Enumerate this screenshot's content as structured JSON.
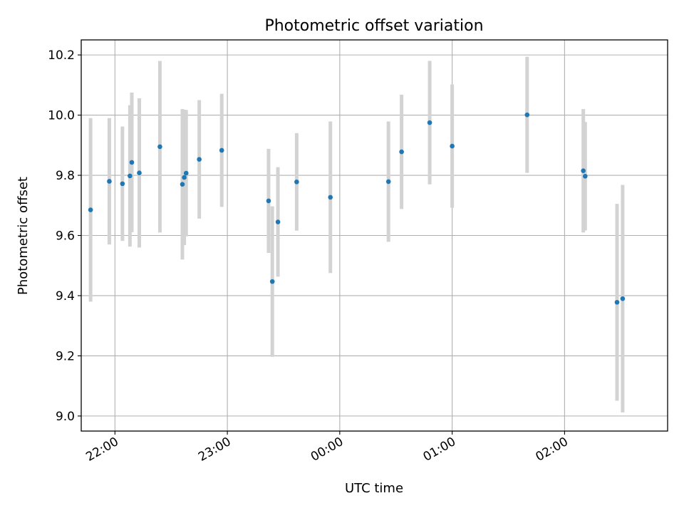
{
  "chart_data": {
    "type": "scatter",
    "title": "Photometric offset variation",
    "xlabel": "UTC time",
    "ylabel": "Photometric offset",
    "x_tick_labels": [
      "22:00",
      "23:00",
      "00:00",
      "01:00",
      "02:00"
    ],
    "x_tick_times": [
      "22:00",
      "23:00",
      "00:00",
      "01:00",
      "02:00"
    ],
    "y_ticks": [
      9.0,
      9.2,
      9.4,
      9.6,
      9.8,
      10.0,
      10.2
    ],
    "y_tick_labels": [
      "9.0",
      "9.2",
      "9.4",
      "9.6",
      "9.8",
      "10.0",
      "10.2"
    ],
    "xlim": [
      "21:42",
      "02:55"
    ],
    "ylim": [
      8.95,
      10.25
    ],
    "grid": true,
    "point_color": "#1f77b4",
    "errorbar_color": "#d3d3d3",
    "series": [
      {
        "points": [
          {
            "t": "21:47",
            "y": 9.685,
            "err": 0.305
          },
          {
            "t": "21:57",
            "y": 9.78,
            "err": 0.21
          },
          {
            "t": "22:04",
            "y": 9.772,
            "err": 0.19
          },
          {
            "t": "22:08",
            "y": 9.798,
            "err": 0.235
          },
          {
            "t": "22:09",
            "y": 9.843,
            "err": 0.232
          },
          {
            "t": "22:13",
            "y": 9.808,
            "err": 0.248
          },
          {
            "t": "22:24",
            "y": 9.895,
            "err": 0.285
          },
          {
            "t": "22:36",
            "y": 9.77,
            "err": 0.25
          },
          {
            "t": "22:37",
            "y": 9.793,
            "err": 0.225
          },
          {
            "t": "22:38",
            "y": 9.807,
            "err": 0.21
          },
          {
            "t": "22:45",
            "y": 9.853,
            "err": 0.197
          },
          {
            "t": "22:57",
            "y": 9.883,
            "err": 0.188
          },
          {
            "t": "23:22",
            "y": 9.715,
            "err": 0.173
          },
          {
            "t": "23:24",
            "y": 9.447,
            "err": 0.25
          },
          {
            "t": "23:27",
            "y": 9.645,
            "err": 0.182
          },
          {
            "t": "23:37",
            "y": 9.778,
            "err": 0.162
          },
          {
            "t": "23:55",
            "y": 9.727,
            "err": 0.252
          },
          {
            "t": "00:26",
            "y": 9.779,
            "err": 0.2
          },
          {
            "t": "00:33",
            "y": 9.878,
            "err": 0.19
          },
          {
            "t": "00:48",
            "y": 9.975,
            "err": 0.205
          },
          {
            "t": "01:00",
            "y": 9.897,
            "err": 0.205
          },
          {
            "t": "01:40",
            "y": 10.001,
            "err": 0.193
          },
          {
            "t": "02:10",
            "y": 9.815,
            "err": 0.205
          },
          {
            "t": "02:11",
            "y": 9.797,
            "err": 0.18
          },
          {
            "t": "02:28",
            "y": 9.378,
            "err": 0.327
          },
          {
            "t": "02:31",
            "y": 9.39,
            "err": 0.378
          }
        ]
      }
    ]
  }
}
